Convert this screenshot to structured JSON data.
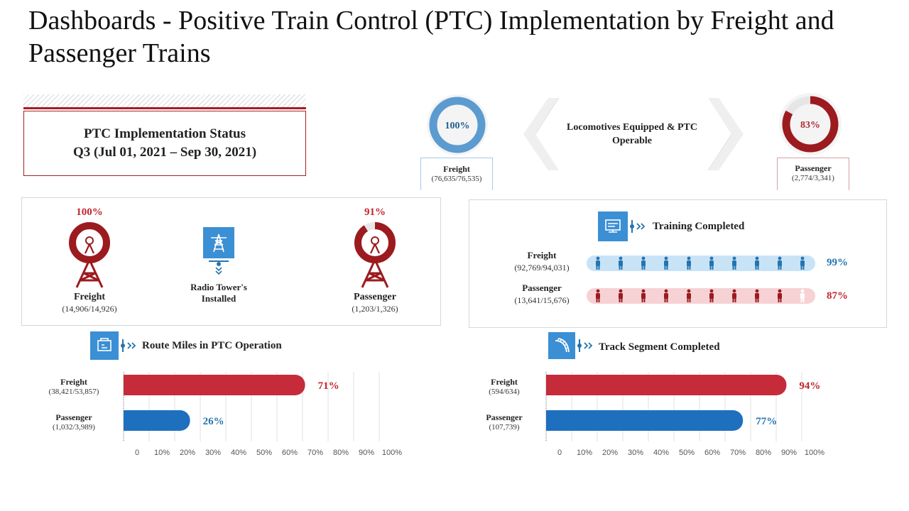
{
  "title": "Dashboards - Positive Train Control (PTC) Implementation by Freight and Passenger Trains",
  "status": {
    "line1": "PTC Implementation Status",
    "line2": "Q3 (Jul 01, 2021 – Sep 30, 2021)"
  },
  "colors": {
    "red": "#c0272d",
    "dark_red": "#9b1b1f",
    "blue": "#2474b0",
    "light_blue": "#c9e3f6",
    "light_red": "#f6d2d4",
    "bar_blue": "#1f6fbf",
    "bar_red": "#c62b3a"
  },
  "locomotives": {
    "label": "Locomotives Equipped & PTC Operable",
    "freight": {
      "pct_text": "100%",
      "value": 1.0,
      "name": "Freight",
      "counts": "(76,635/76,535)"
    },
    "passenger": {
      "pct_text": "83%",
      "value": 0.83,
      "name": "Passenger",
      "counts": "(2,774/3,341)"
    }
  },
  "towers": {
    "center_label_1": "Radio Tower's",
    "center_label_2": "Installed",
    "center_icon": "radio-tower-icon",
    "freight": {
      "pct_text": "100%",
      "value": 1.0,
      "name": "Freight",
      "counts": "(14,906/14,926)"
    },
    "passenger": {
      "pct_text": "91%",
      "value": 0.91,
      "name": "Passenger",
      "counts": "(1,203/1,326)"
    }
  },
  "training": {
    "title": "Training Completed",
    "icon": "training-icon",
    "rows": [
      {
        "name": "Freight",
        "counts": "(92,769/94,031)",
        "pct_text": "99%",
        "value": 0.99,
        "filled": 10
      },
      {
        "name": "Passenger",
        "counts": "(13,641/15,676)",
        "pct_text": "87%",
        "value": 0.87,
        "filled": 9
      }
    ]
  },
  "chart_data": [
    {
      "type": "bar",
      "title": "Route Miles in PTC Operation",
      "icon": "route-miles-icon",
      "categories": [
        "Freight",
        "Passenger"
      ],
      "category_subs": [
        "(38,421/53,857)",
        "(1,032/3,989)"
      ],
      "values": [
        71,
        26
      ],
      "value_labels": [
        "71%",
        "26%"
      ],
      "xlim": [
        0,
        100
      ],
      "ticks": [
        "0",
        "10%",
        "20%",
        "30%",
        "40%",
        "50%",
        "60%",
        "70%",
        "80%",
        "90%",
        "100%"
      ]
    },
    {
      "type": "bar",
      "title": "Track Segment Completed",
      "icon": "track-segment-icon",
      "categories": [
        "Freight",
        "Passenger"
      ],
      "category_subs": [
        "(594/634)",
        "(107,739)"
      ],
      "values": [
        94,
        77
      ],
      "value_labels": [
        "94%",
        "77%"
      ],
      "xlim": [
        0,
        100
      ],
      "ticks": [
        "0",
        "10%",
        "20%",
        "30%",
        "40%",
        "50%",
        "60%",
        "70%",
        "80%",
        "90%",
        "100%"
      ]
    }
  ]
}
